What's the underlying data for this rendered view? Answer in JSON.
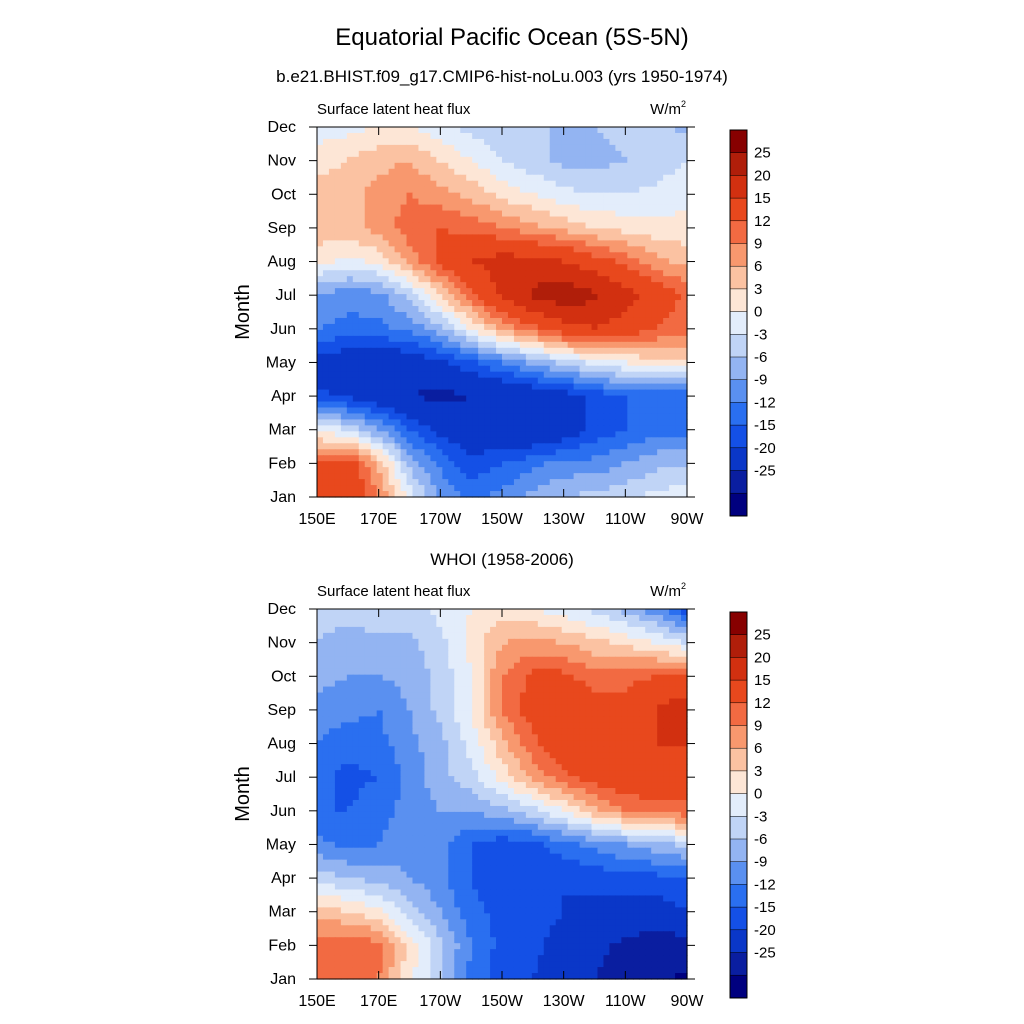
{
  "figure": {
    "title": "Equatorial Pacific Ocean (5S-5N)",
    "colorbar_levels": [
      "-25",
      "-20",
      "-15",
      "-12",
      "-9",
      "-6",
      "-3",
      "0",
      "3",
      "6",
      "9",
      "12",
      "15",
      "20",
      "25"
    ],
    "colorbar_colors": [
      "#00007f",
      "#0a1ea0",
      "#0a37c8",
      "#1450e6",
      "#2a6ff0",
      "#5a90f0",
      "#93b4f2",
      "#c0d4f6",
      "#e3edfb",
      "#fde6d6",
      "#fbc2a2",
      "#f8986e",
      "#f26a42",
      "#e8481d",
      "#d23010",
      "#b01e0a",
      "#870000"
    ]
  },
  "chart_data": [
    {
      "type": "heatmap",
      "title": "b.e21.BHIST.f09_g17.CMIP6-hist-noLu.003 (yrs 1950-1974)",
      "left_label": "Surface latent heat flux",
      "units_label": "W/m",
      "units_sup": "2",
      "ylabel": "Month",
      "x_ticks": [
        "150E",
        "170E",
        "170W",
        "150W",
        "130W",
        "110W",
        "90W"
      ],
      "y_ticks": [
        "Jan",
        "Feb",
        "Mar",
        "Apr",
        "May",
        "Jun",
        "Jul",
        "Aug",
        "Sep",
        "Oct",
        "Nov",
        "Dec"
      ],
      "xlim": [
        150,
        270
      ],
      "ylim": [
        1,
        12
      ],
      "x": [
        150,
        160,
        170,
        180,
        190,
        200,
        210,
        220,
        230,
        240,
        250,
        260,
        270
      ],
      "z": [
        [
          18,
          20,
          12,
          2,
          -6,
          -10,
          -8,
          -5,
          -3,
          -2,
          -1,
          1,
          2
        ],
        [
          15,
          18,
          8,
          -4,
          -10,
          -14,
          -12,
          -10,
          -8,
          -8,
          -6,
          -4,
          -4
        ],
        [
          2,
          0,
          -6,
          -12,
          -16,
          -18,
          -20,
          -20,
          -18,
          -14,
          -12,
          -10,
          -10
        ],
        [
          -14,
          -16,
          -18,
          -20,
          -21,
          -20,
          -20,
          -19,
          -17,
          -14,
          -12,
          -11,
          -12
        ],
        [
          -17,
          -18,
          -19,
          -18,
          -16,
          -13,
          -9,
          -5,
          -2,
          1,
          3,
          5,
          6
        ],
        [
          -9,
          -10,
          -10,
          -8,
          -4,
          3,
          10,
          14,
          18,
          20,
          18,
          15,
          13
        ],
        [
          -6,
          -8,
          -7,
          -2,
          6,
          14,
          21,
          26,
          28,
          26,
          22,
          18,
          14
        ],
        [
          4,
          2,
          4,
          10,
          16,
          20,
          22,
          22,
          20,
          17,
          14,
          10,
          8
        ],
        [
          8,
          8,
          10,
          14,
          15,
          14,
          12,
          10,
          8,
          6,
          5,
          4,
          4
        ],
        [
          7,
          8,
          10,
          12,
          10,
          8,
          5,
          3,
          1,
          0,
          0,
          1,
          2
        ],
        [
          5,
          6,
          8,
          9,
          6,
          3,
          0,
          -2,
          -4,
          -4,
          -3,
          -2,
          0
        ],
        [
          1,
          2,
          3,
          3,
          1,
          -1,
          -2,
          -3,
          -3,
          -3,
          -2,
          -2,
          -4
        ]
      ]
    },
    {
      "type": "heatmap",
      "title": "WHOI (1958-2006)",
      "left_label": "Surface latent heat flux",
      "units_label": "W/m",
      "units_sup": "2",
      "ylabel": "Month",
      "x_ticks": [
        "150E",
        "170E",
        "170W",
        "150W",
        "130W",
        "110W",
        "90W"
      ],
      "y_ticks": [
        "Jan",
        "Feb",
        "Mar",
        "Apr",
        "May",
        "Jun",
        "Jul",
        "Aug",
        "Sep",
        "Oct",
        "Nov",
        "Dec"
      ],
      "xlim": [
        150,
        270
      ],
      "ylim": [
        1,
        12
      ],
      "x": [
        150,
        160,
        170,
        180,
        190,
        200,
        210,
        220,
        230,
        240,
        250,
        260,
        270
      ],
      "z": [
        [
          14,
          15,
          12,
          4,
          -3,
          -10,
          -14,
          -15,
          -18,
          -20,
          -22,
          -24,
          -26
        ],
        [
          13,
          15,
          13,
          5,
          -2,
          -9,
          -13,
          -14,
          -17,
          -19,
          -21,
          -22,
          -22
        ],
        [
          8,
          6,
          4,
          -2,
          -6,
          -11,
          -13,
          -13,
          -15,
          -16,
          -17,
          -17,
          -15
        ],
        [
          -1,
          -3,
          -4,
          -6,
          -8,
          -12,
          -14,
          -14,
          -15,
          -14,
          -13,
          -13,
          -12
        ],
        [
          -8,
          -10,
          -9,
          -7,
          -8,
          -12,
          -14,
          -13,
          -10,
          -8,
          -6,
          -4,
          -2
        ],
        [
          -12,
          -12,
          -10,
          -8,
          -6,
          -6,
          -4,
          -1,
          3,
          8,
          12,
          14,
          14
        ],
        [
          -11,
          -13,
          -12,
          -8,
          -4,
          -1,
          4,
          10,
          14,
          17,
          18,
          18,
          17
        ],
        [
          -9,
          -11,
          -10,
          -7,
          -4,
          1,
          8,
          14,
          18,
          17,
          18,
          20,
          20
        ],
        [
          -7,
          -8,
          -9,
          -6,
          -2,
          3,
          12,
          17,
          20,
          17,
          16,
          20,
          24
        ],
        [
          -5,
          -6,
          -6,
          -5,
          -2,
          3,
          12,
          16,
          16,
          13,
          14,
          15,
          15
        ],
        [
          -3,
          -4,
          -4,
          -4,
          -1,
          4,
          9,
          10,
          9,
          7,
          5,
          3,
          0
        ],
        [
          -2,
          -2,
          -1,
          -1,
          1,
          3,
          5,
          3,
          1,
          -1,
          -4,
          -8,
          -14
        ]
      ]
    }
  ]
}
